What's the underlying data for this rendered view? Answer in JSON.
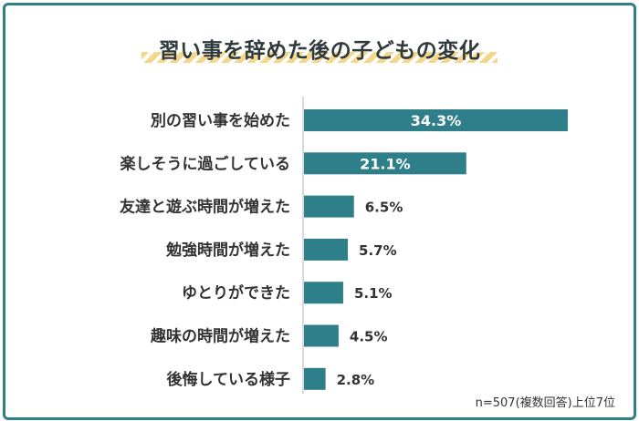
{
  "title": "習い事を辞めた後の子どもの変化",
  "note": "n=507(複数回答)上位7位",
  "colors": {
    "bar": "#2f7f8b",
    "frame": "#2f7f8b",
    "stripe": "#f5d78a"
  },
  "chart_data": {
    "type": "bar",
    "orientation": "horizontal",
    "categories": [
      "別の習い事を始めた",
      "楽しそうに過ごしている",
      "友達と遊ぶ時間が増えた",
      "勉強時間が増えた",
      "ゆとりができた",
      "趣味の時間が増えた",
      "後悔している様子"
    ],
    "values": [
      34.3,
      21.1,
      6.5,
      5.7,
      5.1,
      4.5,
      2.8
    ],
    "value_labels": [
      "34.3%",
      "21.1%",
      "6.5%",
      "5.7%",
      "5.1%",
      "4.5%",
      "2.8%"
    ],
    "unit": "%",
    "xlim": [
      0,
      40
    ],
    "grid": false,
    "legend": "none"
  }
}
